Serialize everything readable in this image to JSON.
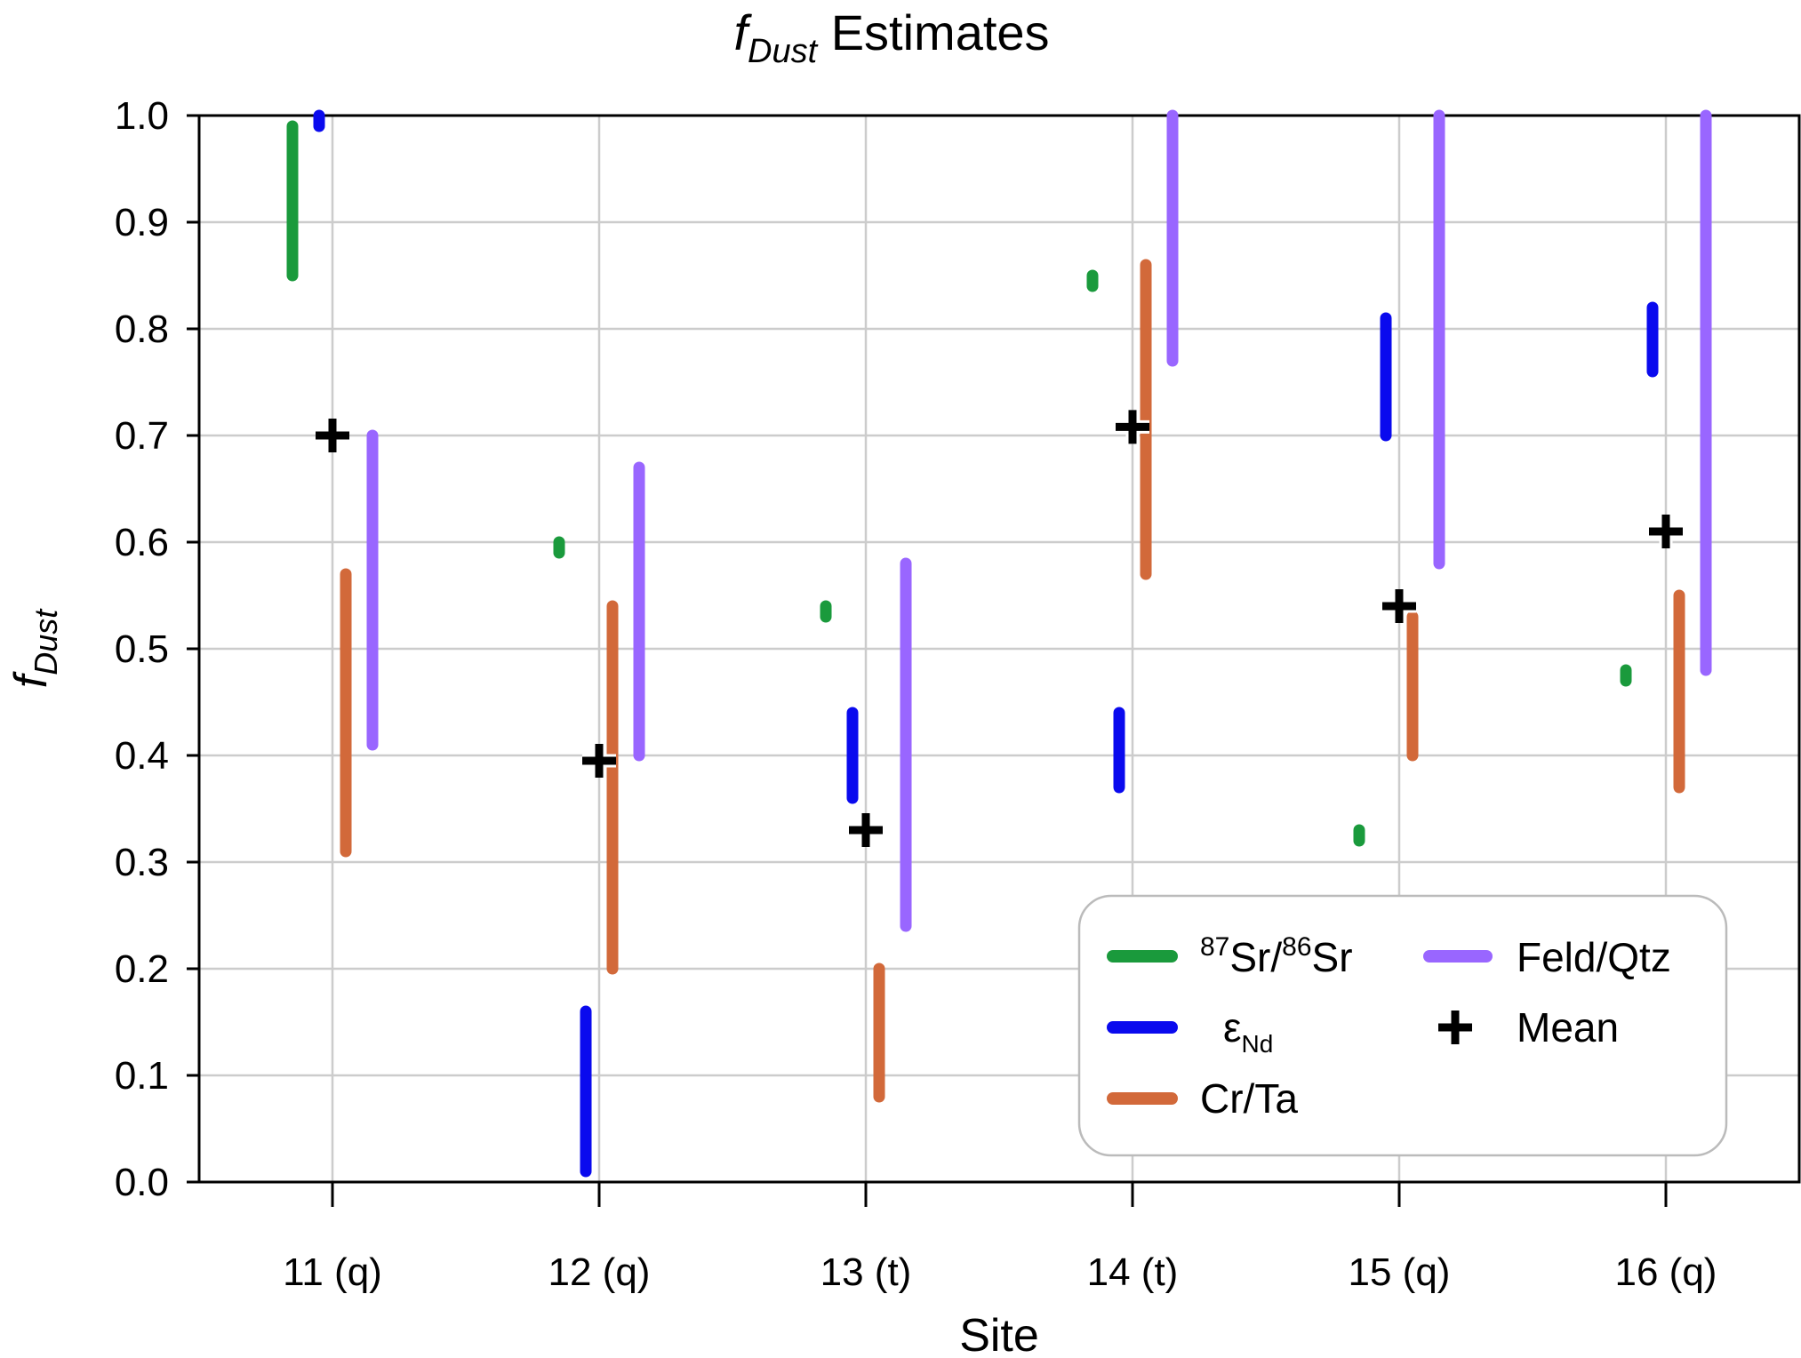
{
  "chart_data": {
    "type": "range",
    "title": {
      "italic_symbol": "f",
      "subscript": "Dust",
      "rest": " Estimates"
    },
    "xlabel": "Site",
    "ylabel": {
      "italic_symbol": "f",
      "subscript": "Dust"
    },
    "ylim": [
      0,
      1.0
    ],
    "yticks": [
      "0.0",
      "0.1",
      "0.2",
      "0.3",
      "0.4",
      "0.5",
      "0.6",
      "0.7",
      "0.8",
      "0.9",
      "1.0"
    ],
    "grid": true,
    "categories": [
      "11 (q)",
      "12 (q)",
      "13 (t)",
      "14 (t)",
      "15 (q)",
      "16 (q)"
    ],
    "series": [
      {
        "name": "87Sr/86Sr",
        "color": "#1a9a3c",
        "offset": -0.15,
        "ranges": [
          [
            0.85,
            0.99
          ],
          [
            0.59,
            0.6
          ],
          [
            0.53,
            0.54
          ],
          [
            0.84,
            0.85
          ],
          [
            0.32,
            0.33
          ],
          [
            0.47,
            0.48
          ]
        ]
      },
      {
        "name": "εNd",
        "color": "#0a0aee",
        "offset": -0.05,
        "ranges": [
          [
            0.99,
            1.0
          ],
          [
            0.01,
            0.16
          ],
          [
            0.36,
            0.44
          ],
          [
            0.37,
            0.44
          ],
          [
            0.7,
            0.81
          ],
          [
            0.76,
            0.82
          ]
        ]
      },
      {
        "name": "Cr/Ta",
        "color": "#d2693a",
        "offset": 0.05,
        "ranges": [
          [
            0.31,
            0.57
          ],
          [
            0.2,
            0.54
          ],
          [
            0.08,
            0.2
          ],
          [
            0.57,
            0.86
          ],
          [
            0.4,
            0.53
          ],
          [
            0.37,
            0.55
          ]
        ]
      },
      {
        "name": "Feld/Qtz",
        "color": "#9966ff",
        "offset": 0.15,
        "ranges": [
          [
            0.41,
            0.7
          ],
          [
            0.4,
            0.67
          ],
          [
            0.24,
            0.58
          ],
          [
            0.77,
            1.0
          ],
          [
            0.58,
            1.0
          ],
          [
            0.48,
            1.0
          ]
        ]
      }
    ],
    "mean": {
      "name": "Mean",
      "color": "#000000",
      "values": [
        0.7,
        0.395,
        0.33,
        0.708,
        0.54,
        0.61
      ]
    },
    "legend": {
      "placement": "lower-right",
      "entries": [
        {
          "series": "87Sr/86Sr",
          "sup1": "87",
          "text1": "Sr/",
          "sup2": "86",
          "text2": "Sr",
          "color": "#1a9a3c",
          "kind": "line"
        },
        {
          "series": "εNd",
          "main": "ε",
          "sub": "Nd",
          "color": "#0a0aee",
          "kind": "line"
        },
        {
          "series": "Cr/Ta",
          "text": "Cr/Ta",
          "color": "#d2693a",
          "kind": "line"
        },
        {
          "series": "Feld/Qtz",
          "text": "Feld/Qtz",
          "color": "#9966ff",
          "kind": "line"
        },
        {
          "series": "Mean",
          "text": "Mean",
          "color": "#000000",
          "kind": "plus"
        }
      ]
    }
  }
}
